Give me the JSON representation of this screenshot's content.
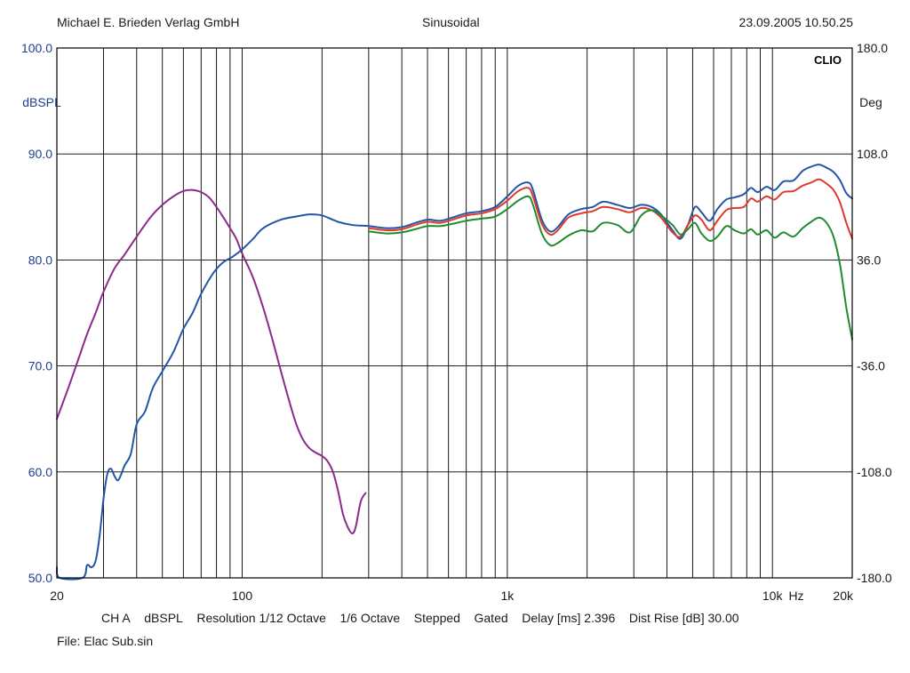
{
  "header": {
    "publisher": "Michael E. Brieden Verlag GmbH",
    "mode": "Sinusoidal",
    "timestamp": "23.09.2005 10.50.25"
  },
  "brand": "CLIO",
  "footer": {
    "channel": "CH A",
    "unit": "dBSPL",
    "resolution": "Resolution 1/12 Octave",
    "smoothing": "1/6 Octave",
    "sweep": "Stepped",
    "gating": "Gated",
    "delay": "Delay [ms] 2.396",
    "dist_rise": "Dist Rise [dB] 30.00",
    "file": "File: Elac Sub.sin"
  },
  "colors": {
    "axis_text": "#1f3f8f",
    "grid": "#000000",
    "blue": "#2255a8",
    "red": "#e0392c",
    "green": "#1e8c2e",
    "purple": "#8b2a8c"
  },
  "chart_data": {
    "type": "line",
    "xscale": "log",
    "xlim": [
      20,
      20000
    ],
    "ylim": [
      50,
      100
    ],
    "y2lim": [
      -180,
      180
    ],
    "ylabel": "dBSPL",
    "y2label": "Deg",
    "xunit": "Hz",
    "grid": true,
    "x_ticks": [
      {
        "value": 20,
        "label": "20"
      },
      {
        "value": 100,
        "label": "100"
      },
      {
        "value": 1000,
        "label": "1k"
      },
      {
        "value": 10000,
        "label": "10k"
      },
      {
        "value": 20000,
        "label": "20k"
      }
    ],
    "y_ticks": [
      {
        "value": 100,
        "label": "100.0"
      },
      {
        "value": 90,
        "label": "90.0"
      },
      {
        "value": 80,
        "label": "80.0"
      },
      {
        "value": 70,
        "label": "70.0"
      },
      {
        "value": 60,
        "label": "60.0"
      },
      {
        "value": 50,
        "label": "50.0"
      }
    ],
    "y2_ticks": [
      {
        "value": 180,
        "label": "180.0"
      },
      {
        "value": 108,
        "label": "108.0"
      },
      {
        "value": 36,
        "label": "36.0"
      },
      {
        "value": -36,
        "label": "-36.0"
      },
      {
        "value": -108,
        "label": "-108.0"
      },
      {
        "value": -180,
        "label": "-180.0"
      }
    ],
    "series": [
      {
        "color_key": "purple",
        "points": [
          [
            20,
            65.0
          ],
          [
            22,
            67.8
          ],
          [
            24,
            70.5
          ],
          [
            26,
            73.0
          ],
          [
            28,
            75.0
          ],
          [
            30,
            77.0
          ],
          [
            33,
            79.2
          ],
          [
            36,
            80.5
          ],
          [
            40,
            82.2
          ],
          [
            45,
            84.0
          ],
          [
            50,
            85.2
          ],
          [
            55,
            86.0
          ],
          [
            60,
            86.5
          ],
          [
            65,
            86.6
          ],
          [
            70,
            86.4
          ],
          [
            75,
            85.9
          ],
          [
            80,
            85.0
          ],
          [
            85,
            84.0
          ],
          [
            90,
            83.0
          ],
          [
            95,
            82.0
          ],
          [
            100,
            80.6
          ],
          [
            110,
            78.3
          ],
          [
            120,
            75.5
          ],
          [
            130,
            72.5
          ],
          [
            140,
            69.5
          ],
          [
            150,
            66.8
          ],
          [
            160,
            64.5
          ],
          [
            170,
            63.0
          ],
          [
            180,
            62.2
          ],
          [
            190,
            61.8
          ],
          [
            200,
            61.5
          ],
          [
            210,
            61.0
          ],
          [
            220,
            60.0
          ],
          [
            230,
            58.2
          ],
          [
            240,
            56.0
          ],
          [
            250,
            54.8
          ],
          [
            260,
            54.2
          ],
          [
            268,
            54.8
          ],
          [
            280,
            57.2
          ],
          [
            292,
            58.0
          ]
        ]
      },
      {
        "color_key": "blue",
        "points": [
          [
            20,
            51.0
          ],
          [
            20.5,
            50.0
          ],
          [
            25,
            50.0
          ],
          [
            26,
            51.2
          ],
          [
            27,
            51.0
          ],
          [
            28,
            51.6
          ],
          [
            29,
            54.0
          ],
          [
            30,
            57.5
          ],
          [
            31,
            59.8
          ],
          [
            32,
            60.3
          ],
          [
            33,
            59.6
          ],
          [
            34,
            59.2
          ],
          [
            35,
            59.8
          ],
          [
            36,
            60.6
          ],
          [
            38,
            61.7
          ],
          [
            40,
            64.5
          ],
          [
            43,
            65.7
          ],
          [
            46,
            67.9
          ],
          [
            50,
            69.5
          ],
          [
            55,
            71.3
          ],
          [
            60,
            73.5
          ],
          [
            65,
            75.0
          ],
          [
            70,
            76.8
          ],
          [
            78,
            78.8
          ],
          [
            85,
            79.8
          ],
          [
            92,
            80.3
          ],
          [
            100,
            81.0
          ],
          [
            110,
            82.0
          ],
          [
            120,
            83.0
          ],
          [
            140,
            83.8
          ],
          [
            160,
            84.1
          ],
          [
            180,
            84.3
          ],
          [
            200,
            84.2
          ],
          [
            230,
            83.6
          ],
          [
            260,
            83.3
          ],
          [
            300,
            83.2
          ],
          [
            350,
            83.0
          ],
          [
            400,
            83.1
          ],
          [
            450,
            83.5
          ],
          [
            500,
            83.8
          ],
          [
            560,
            83.7
          ],
          [
            620,
            84.0
          ],
          [
            700,
            84.4
          ],
          [
            800,
            84.6
          ],
          [
            900,
            85.0
          ],
          [
            1000,
            86.0
          ],
          [
            1100,
            87.0
          ],
          [
            1200,
            87.3
          ],
          [
            1250,
            86.6
          ],
          [
            1350,
            83.8
          ],
          [
            1450,
            82.7
          ],
          [
            1550,
            83.1
          ],
          [
            1700,
            84.3
          ],
          [
            1900,
            84.8
          ],
          [
            2100,
            85.0
          ],
          [
            2300,
            85.5
          ],
          [
            2600,
            85.2
          ],
          [
            2900,
            84.9
          ],
          [
            3200,
            85.2
          ],
          [
            3500,
            85.0
          ],
          [
            3800,
            84.3
          ],
          [
            4200,
            82.8
          ],
          [
            4500,
            82.0
          ],
          [
            4800,
            83.3
          ],
          [
            5100,
            85.0
          ],
          [
            5400,
            84.5
          ],
          [
            5800,
            83.7
          ],
          [
            6200,
            84.8
          ],
          [
            6700,
            85.7
          ],
          [
            7200,
            85.9
          ],
          [
            7800,
            86.2
          ],
          [
            8300,
            86.8
          ],
          [
            8800,
            86.4
          ],
          [
            9500,
            86.9
          ],
          [
            10200,
            86.6
          ],
          [
            11000,
            87.4
          ],
          [
            12000,
            87.5
          ],
          [
            13000,
            88.4
          ],
          [
            14000,
            88.8
          ],
          [
            15000,
            89.0
          ],
          [
            16000,
            88.7
          ],
          [
            17000,
            88.3
          ],
          [
            18000,
            87.5
          ],
          [
            19000,
            86.3
          ],
          [
            20000,
            85.8
          ]
        ]
      },
      {
        "color_key": "red",
        "points": [
          [
            300,
            83.0
          ],
          [
            350,
            82.8
          ],
          [
            400,
            82.9
          ],
          [
            450,
            83.3
          ],
          [
            500,
            83.6
          ],
          [
            560,
            83.5
          ],
          [
            620,
            83.8
          ],
          [
            700,
            84.2
          ],
          [
            800,
            84.4
          ],
          [
            900,
            84.8
          ],
          [
            1000,
            85.6
          ],
          [
            1100,
            86.5
          ],
          [
            1200,
            86.8
          ],
          [
            1250,
            86.0
          ],
          [
            1350,
            83.4
          ],
          [
            1450,
            82.4
          ],
          [
            1550,
            82.8
          ],
          [
            1700,
            84.0
          ],
          [
            1900,
            84.4
          ],
          [
            2100,
            84.6
          ],
          [
            2300,
            85.0
          ],
          [
            2600,
            84.8
          ],
          [
            2900,
            84.5
          ],
          [
            3200,
            84.9
          ],
          [
            3500,
            84.7
          ],
          [
            3800,
            84.0
          ],
          [
            4200,
            82.6
          ],
          [
            4500,
            82.2
          ],
          [
            4800,
            83.3
          ],
          [
            5100,
            84.2
          ],
          [
            5400,
            83.8
          ],
          [
            5800,
            82.8
          ],
          [
            6200,
            83.7
          ],
          [
            6700,
            84.7
          ],
          [
            7200,
            84.9
          ],
          [
            7800,
            85.0
          ],
          [
            8300,
            85.8
          ],
          [
            8800,
            85.5
          ],
          [
            9500,
            86.0
          ],
          [
            10200,
            85.7
          ],
          [
            11000,
            86.4
          ],
          [
            12000,
            86.5
          ],
          [
            13000,
            87.0
          ],
          [
            14000,
            87.3
          ],
          [
            15000,
            87.6
          ],
          [
            16000,
            87.2
          ],
          [
            17000,
            86.6
          ],
          [
            18000,
            85.4
          ],
          [
            19000,
            83.5
          ],
          [
            20000,
            82.0
          ]
        ]
      },
      {
        "color_key": "green",
        "points": [
          [
            300,
            82.7
          ],
          [
            350,
            82.5
          ],
          [
            400,
            82.6
          ],
          [
            450,
            82.9
          ],
          [
            500,
            83.2
          ],
          [
            560,
            83.2
          ],
          [
            620,
            83.4
          ],
          [
            700,
            83.7
          ],
          [
            800,
            83.9
          ],
          [
            900,
            84.1
          ],
          [
            1000,
            84.8
          ],
          [
            1100,
            85.6
          ],
          [
            1200,
            86.0
          ],
          [
            1250,
            85.2
          ],
          [
            1350,
            82.5
          ],
          [
            1450,
            81.4
          ],
          [
            1550,
            81.6
          ],
          [
            1700,
            82.3
          ],
          [
            1900,
            82.8
          ],
          [
            2100,
            82.7
          ],
          [
            2300,
            83.5
          ],
          [
            2600,
            83.3
          ],
          [
            2900,
            82.6
          ],
          [
            3200,
            84.2
          ],
          [
            3500,
            84.7
          ],
          [
            3800,
            84.2
          ],
          [
            4200,
            83.3
          ],
          [
            4500,
            82.4
          ],
          [
            4800,
            82.9
          ],
          [
            5100,
            83.5
          ],
          [
            5400,
            82.5
          ],
          [
            5800,
            81.8
          ],
          [
            6200,
            82.2
          ],
          [
            6700,
            83.2
          ],
          [
            7200,
            82.8
          ],
          [
            7800,
            82.5
          ],
          [
            8300,
            82.9
          ],
          [
            8800,
            82.4
          ],
          [
            9500,
            82.8
          ],
          [
            10200,
            82.1
          ],
          [
            11000,
            82.6
          ],
          [
            12000,
            82.2
          ],
          [
            13000,
            83.0
          ],
          [
            14000,
            83.6
          ],
          [
            15000,
            84.0
          ],
          [
            16000,
            83.5
          ],
          [
            17000,
            82.2
          ],
          [
            18000,
            79.5
          ],
          [
            19000,
            75.5
          ],
          [
            20000,
            72.5
          ]
        ]
      }
    ]
  }
}
